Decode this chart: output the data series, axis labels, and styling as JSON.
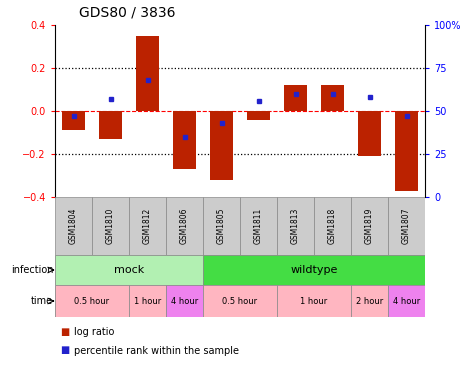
{
  "title": "GDS80 / 3836",
  "samples": [
    "GSM1804",
    "GSM1810",
    "GSM1812",
    "GSM1806",
    "GSM1805",
    "GSM1811",
    "GSM1813",
    "GSM1818",
    "GSM1819",
    "GSM1807"
  ],
  "log_ratio": [
    -0.09,
    -0.13,
    0.35,
    -0.27,
    -0.32,
    -0.04,
    0.12,
    0.12,
    -0.21,
    -0.37
  ],
  "percentile": [
    47,
    57,
    68,
    35,
    43,
    56,
    60,
    60,
    58,
    47
  ],
  "infection_groups": [
    {
      "label": "mock",
      "start": 0,
      "end": 4,
      "color": "#b2f0b2"
    },
    {
      "label": "wildtype",
      "start": 4,
      "end": 10,
      "color": "#44dd44"
    }
  ],
  "time_groups": [
    {
      "label": "0.5 hour",
      "start": 0,
      "end": 2,
      "color": "#ffb6c1"
    },
    {
      "label": "1 hour",
      "start": 2,
      "end": 3,
      "color": "#ffb6c1"
    },
    {
      "label": "4 hour",
      "start": 3,
      "end": 4,
      "color": "#ee82ee"
    },
    {
      "label": "0.5 hour",
      "start": 4,
      "end": 6,
      "color": "#ffb6c1"
    },
    {
      "label": "1 hour",
      "start": 6,
      "end": 8,
      "color": "#ffb6c1"
    },
    {
      "label": "2 hour",
      "start": 8,
      "end": 9,
      "color": "#ffb6c1"
    },
    {
      "label": "4 hour",
      "start": 9,
      "end": 10,
      "color": "#ee82ee"
    }
  ],
  "ylim_left": [
    -0.4,
    0.4
  ],
  "bar_color": "#bb2200",
  "dot_color": "#2222cc",
  "sample_box_color": "#cccccc",
  "infection_label": "infection",
  "time_label": "time",
  "legend_items": [
    "log ratio",
    "percentile rank within the sample"
  ],
  "left_yticks": [
    -0.4,
    -0.2,
    0.0,
    0.2,
    0.4
  ],
  "right_yticks": [
    0,
    25,
    50,
    75,
    100
  ],
  "right_yticklabels": [
    "0",
    "25",
    "50",
    "75",
    "100%"
  ]
}
